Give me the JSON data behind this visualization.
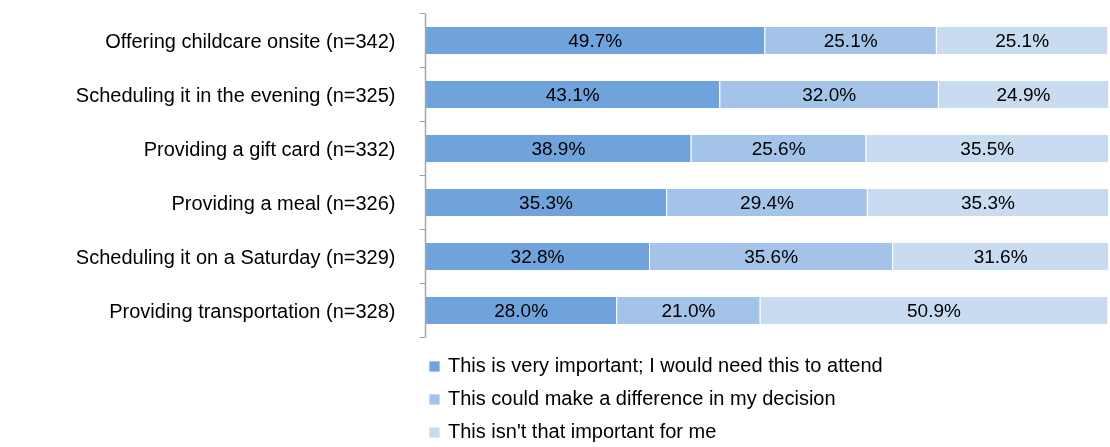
{
  "chart_data": {
    "type": "bar",
    "orientation": "horizontal",
    "stacked": true,
    "tick_labels": "y",
    "legend": "bottom",
    "xlim": [
      0,
      100
    ],
    "categories": [
      "Offering childcare onsite (n=342)",
      "Scheduling it in the evening (n=325)",
      "Providing a gift card (n=332)",
      "Providing a meal (n=326)",
      "Scheduling it on a Saturday (n=329)",
      "Providing transportation (n=328)"
    ],
    "series": [
      {
        "name": "This is very important; I would need this to attend",
        "color": "#70a3dc",
        "values": [
          49.7,
          43.1,
          38.9,
          35.3,
          32.8,
          28.0
        ],
        "value_labels": [
          "49.7%",
          "43.1%",
          "38.9%",
          "35.3%",
          "32.8%",
          "28.0%"
        ]
      },
      {
        "name": "This could make a difference in my decision",
        "color": "#a4c3e8",
        "values": [
          25.1,
          32.0,
          25.6,
          29.4,
          35.6,
          21.0
        ],
        "value_labels": [
          "25.1%",
          "32.0%",
          "25.6%",
          "29.4%",
          "35.6%",
          "21.0%"
        ]
      },
      {
        "name": "This isn't that important for me",
        "color": "#c8dbf1",
        "values": [
          25.1,
          24.9,
          35.5,
          35.3,
          31.6,
          50.9
        ],
        "value_labels": [
          "25.1%",
          "24.9%",
          "35.5%",
          "35.3%",
          "31.6%",
          "50.9%"
        ]
      }
    ]
  }
}
